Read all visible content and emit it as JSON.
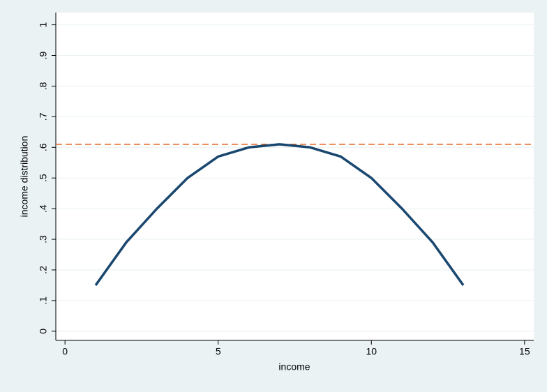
{
  "chart_data": {
    "type": "line",
    "x_label": "income",
    "y_label": "income distribution",
    "x": [
      1,
      2,
      3,
      4,
      5,
      6,
      7,
      8,
      9,
      10,
      11,
      12,
      13
    ],
    "series": [
      {
        "color": "#1a476f",
        "values": [
          0.15,
          0.29,
          0.4,
          0.5,
          0.57,
          0.6,
          0.61,
          0.6,
          0.57,
          0.5,
          0.4,
          0.29,
          0.15
        ]
      }
    ],
    "hline": {
      "value": 0.61,
      "color": "#e2621f",
      "style": "dashed"
    },
    "xlim": [
      -0.3,
      15.3
    ],
    "xticks": [
      0,
      5,
      10,
      15
    ],
    "ylim": [
      -0.03,
      1.04
    ],
    "yticks": [
      0,
      {
        "value": 0.1,
        "label": ".1"
      },
      {
        "value": 0.2,
        "label": ".2"
      },
      {
        "value": 0.3,
        "label": ".3"
      },
      {
        "value": 0.4,
        "label": ".4"
      },
      {
        "value": 0.5,
        "label": ".5"
      },
      {
        "value": 0.6,
        "label": ".6"
      },
      {
        "value": 0.7,
        "label": ".7"
      },
      {
        "value": 0.8,
        "label": ".8"
      },
      {
        "value": 0.9,
        "label": ".9"
      },
      1
    ],
    "grid": true
  }
}
